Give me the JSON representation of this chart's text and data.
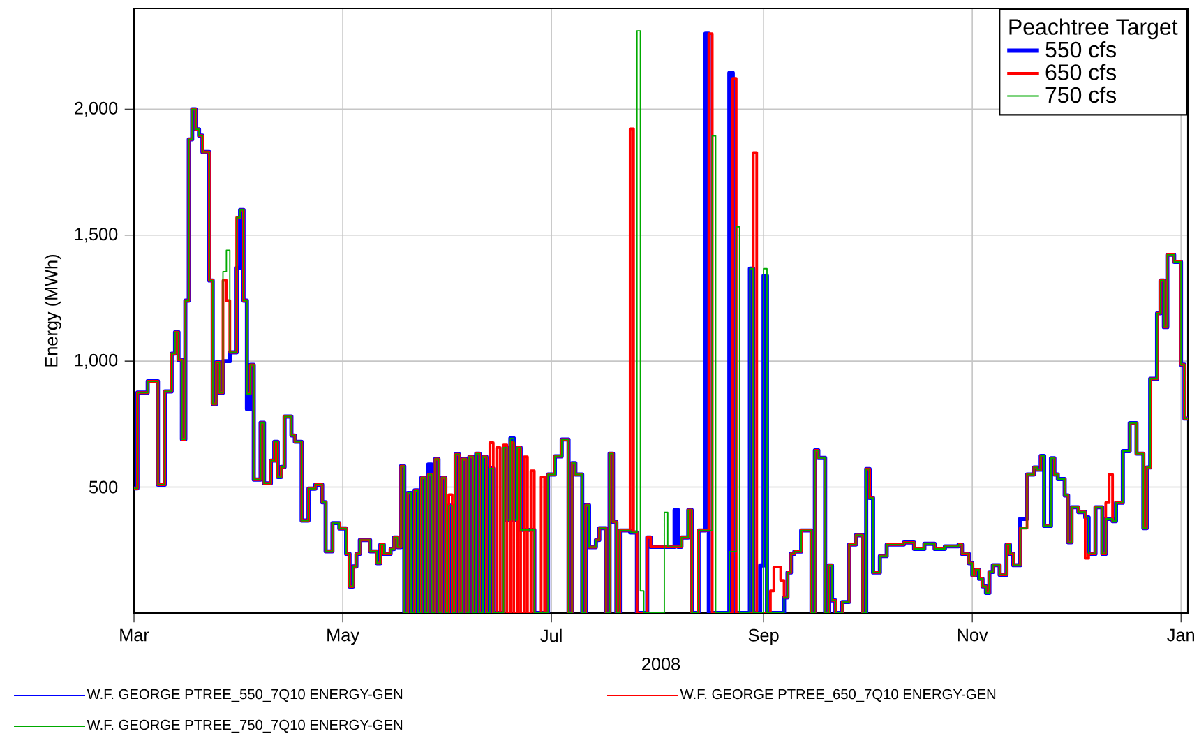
{
  "chart_data": {
    "type": "step",
    "ylabel": "Energy (MWh)",
    "xlabel": "2008",
    "legend_title": "Peachtree Target",
    "legend": "top right",
    "grid": true,
    "xlim": [
      "2008-03-01",
      "2009-01-03"
    ],
    "ylim": [
      0,
      2400
    ],
    "xticks": [
      {
        "value": "2008-03-01",
        "label": "Mar"
      },
      {
        "value": "2008-05-01",
        "label": "May"
      },
      {
        "value": "2008-07-01",
        "label": "Jul"
      },
      {
        "value": "2008-09-01",
        "label": "Sep"
      },
      {
        "value": "2008-11-01",
        "label": "Nov"
      },
      {
        "value": "2009-01-01",
        "label": "Jan"
      }
    ],
    "yticks": [
      500,
      {
        "value": 1000,
        "label": "1,000"
      },
      {
        "value": 1500,
        "label": "1,500"
      },
      {
        "value": 2000,
        "label": "2,000"
      }
    ],
    "x": [
      "2008-03-01",
      "2008-03-02",
      "2008-03-05",
      "2008-03-08",
      "2008-03-10",
      "2008-03-12",
      "2008-03-13",
      "2008-03-14",
      "2008-03-15",
      "2008-03-16",
      "2008-03-17",
      "2008-03-18",
      "2008-03-19",
      "2008-03-20",
      "2008-03-21",
      "2008-03-23",
      "2008-03-24",
      "2008-03-25",
      "2008-03-26",
      "2008-03-27",
      "2008-03-28",
      "2008-03-29",
      "2008-03-31",
      "2008-04-01",
      "2008-04-02",
      "2008-04-03",
      "2008-04-04",
      "2008-04-05",
      "2008-04-07",
      "2008-04-08",
      "2008-04-10",
      "2008-04-11",
      "2008-04-12",
      "2008-04-13",
      "2008-04-14",
      "2008-04-16",
      "2008-04-17",
      "2008-04-19",
      "2008-04-21",
      "2008-04-23",
      "2008-04-25",
      "2008-04-26",
      "2008-04-28",
      "2008-04-30",
      "2008-05-02",
      "2008-05-03",
      "2008-05-04",
      "2008-05-05",
      "2008-05-06",
      "2008-05-09",
      "2008-05-11",
      "2008-05-12",
      "2008-05-13",
      "2008-05-15",
      "2008-05-16",
      "2008-05-17",
      "2008-05-18",
      "2008-05-19",
      "2008-05-20",
      "2008-05-21",
      "2008-05-22",
      "2008-05-23",
      "2008-05-24",
      "2008-05-25",
      "2008-05-26",
      "2008-05-27",
      "2008-05-28",
      "2008-05-29",
      "2008-05-30",
      "2008-05-31",
      "2008-06-01",
      "2008-06-02",
      "2008-06-03",
      "2008-06-04",
      "2008-06-05",
      "2008-06-06",
      "2008-06-07",
      "2008-06-08",
      "2008-06-09",
      "2008-06-10",
      "2008-06-11",
      "2008-06-12",
      "2008-06-13",
      "2008-06-14",
      "2008-06-15",
      "2008-06-16",
      "2008-06-17",
      "2008-06-18",
      "2008-06-19",
      "2008-06-20",
      "2008-06-21",
      "2008-06-22",
      "2008-06-23",
      "2008-06-24",
      "2008-06-25",
      "2008-06-26",
      "2008-06-28",
      "2008-06-29",
      "2008-06-30",
      "2008-07-02",
      "2008-07-04",
      "2008-07-06",
      "2008-07-07",
      "2008-07-08",
      "2008-07-10",
      "2008-07-11",
      "2008-07-12",
      "2008-07-14",
      "2008-07-15",
      "2008-07-17",
      "2008-07-18",
      "2008-07-19",
      "2008-07-20",
      "2008-07-21",
      "2008-07-24",
      "2008-07-25",
      "2008-07-26",
      "2008-07-27",
      "2008-07-28",
      "2008-07-29",
      "2008-07-30",
      "2008-08-03",
      "2008-08-04",
      "2008-08-06",
      "2008-08-07",
      "2008-08-08",
      "2008-08-10",
      "2008-08-11",
      "2008-08-13",
      "2008-08-15",
      "2008-08-16",
      "2008-08-17",
      "2008-08-18",
      "2008-08-22",
      "2008-08-23",
      "2008-08-24",
      "2008-08-25",
      "2008-08-28",
      "2008-08-29",
      "2008-08-30",
      "2008-08-31",
      "2008-09-01",
      "2008-09-02",
      "2008-09-03",
      "2008-09-04",
      "2008-09-06",
      "2008-09-07",
      "2008-09-08",
      "2008-09-09",
      "2008-09-10",
      "2008-09-12",
      "2008-09-15",
      "2008-09-16",
      "2008-09-17",
      "2008-09-19",
      "2008-09-20",
      "2008-09-21",
      "2008-09-22",
      "2008-09-24",
      "2008-09-26",
      "2008-09-28",
      "2008-09-30",
      "2008-10-01",
      "2008-10-02",
      "2008-10-03",
      "2008-10-05",
      "2008-10-07",
      "2008-10-12",
      "2008-10-15",
      "2008-10-18",
      "2008-10-21",
      "2008-10-24",
      "2008-10-28",
      "2008-10-29",
      "2008-10-31",
      "2008-11-01",
      "2008-11-02",
      "2008-11-03",
      "2008-11-04",
      "2008-11-05",
      "2008-11-06",
      "2008-11-07",
      "2008-11-09",
      "2008-11-11",
      "2008-11-12",
      "2008-11-13",
      "2008-11-15",
      "2008-11-17",
      "2008-11-19",
      "2008-11-20",
      "2008-11-21",
      "2008-11-22",
      "2008-11-24",
      "2008-11-25",
      "2008-11-26",
      "2008-11-28",
      "2008-11-29",
      "2008-11-30",
      "2008-12-02",
      "2008-12-04",
      "2008-12-05",
      "2008-12-07",
      "2008-12-09",
      "2008-12-10",
      "2008-12-11",
      "2008-12-12",
      "2008-12-13",
      "2008-12-15",
      "2008-12-17",
      "2008-12-19",
      "2008-12-21",
      "2008-12-22",
      "2008-12-23",
      "2008-12-25",
      "2008-12-26",
      "2008-12-27",
      "2008-12-28",
      "2008-12-30",
      "2009-01-01",
      "2009-01-02",
      "2009-01-03"
    ],
    "series": [
      {
        "name": "550 cfs",
        "color": "#0000ff",
        "values": [
          495,
          875,
          920,
          510,
          880,
          1030,
          1115,
          1005,
          690,
          1240,
          1880,
          2000,
          1920,
          1895,
          1830,
          1320,
          830,
          995,
          875,
          1000,
          1000,
          1035,
          1370,
          1600,
          1240,
          810,
          985,
          530,
          755,
          515,
          605,
          680,
          540,
          580,
          780,
          705,
          680,
          367,
          494,
          510,
          440,
          245,
          357,
          336,
          235,
          105,
          185,
          235,
          290,
          245,
          198,
          272,
          235,
          254,
          300,
          262,
          583,
          0,
          477,
          0,
          487,
          0,
          537,
          0,
          590,
          0,
          611,
          0,
          537,
          0,
          426,
          0,
          630,
          0,
          611,
          0,
          620,
          0,
          633,
          0,
          620,
          0,
          574,
          0,
          0,
          0,
          657,
          370,
          694,
          370,
          657,
          330,
          330,
          330,
          330,
          0,
          0,
          0,
          550,
          622,
          689,
          0,
          595,
          550,
          0,
          428,
          262,
          290,
          337,
          0,
          633,
          362,
          0,
          328,
          320,
          320,
          0,
          0,
          0,
          300,
          263,
          263,
          263,
          409,
          263,
          300,
          409,
          0,
          328,
          2300,
          0,
          0,
          0,
          2144,
          0,
          0,
          0,
          1367,
          0,
          0,
          189,
          1339,
          0,
          0,
          0,
          0,
          62,
          161,
          235,
          244,
          328,
          0,
          646,
          616,
          0,
          189,
          50,
          0,
          44,
          272,
          309,
          0,
          572,
          457,
          161,
          226,
          272,
          280,
          255,
          275,
          255,
          265,
          272,
          235,
          198,
          150,
          172,
          136,
          106,
          80,
          163,
          190,
          152,
          272,
          235,
          190,
          374,
          550,
          578,
          569,
          624,
          346,
          615,
          550,
          532,
          467,
          281,
          420,
          401,
          380,
          235,
          420,
          235,
          374,
          374,
          365,
          438,
          643,
          754,
          633,
          337,
          578,
          930,
          1190,
          1320,
          1135,
          1422,
          1394,
          986,
          772,
          772
        ]
      },
      {
        "name": "650 cfs",
        "color": "#ff0000",
        "values": [
          495,
          875,
          920,
          510,
          880,
          1030,
          1115,
          1005,
          690,
          1240,
          1880,
          2000,
          1920,
          1895,
          1830,
          1320,
          830,
          995,
          875,
          1320,
          1240,
          1035,
          1570,
          1600,
          1240,
          870,
          985,
          530,
          755,
          515,
          605,
          680,
          540,
          580,
          780,
          705,
          680,
          367,
          494,
          510,
          440,
          245,
          357,
          336,
          235,
          105,
          185,
          235,
          290,
          245,
          198,
          272,
          235,
          254,
          300,
          262,
          583,
          0,
          477,
          0,
          487,
          0,
          537,
          0,
          550,
          0,
          611,
          0,
          537,
          0,
          470,
          0,
          630,
          0,
          611,
          0,
          620,
          0,
          633,
          0,
          620,
          0,
          676,
          0,
          657,
          0,
          667,
          0,
          676,
          0,
          657,
          0,
          620,
          0,
          565,
          0,
          540,
          0,
          550,
          622,
          689,
          0,
          595,
          550,
          0,
          428,
          262,
          290,
          337,
          0,
          633,
          362,
          0,
          328,
          1922,
          320,
          0,
          0,
          0,
          300,
          263,
          263,
          263,
          263,
          263,
          300,
          409,
          0,
          328,
          328,
          2300,
          0,
          0,
          0,
          2122,
          0,
          0,
          0,
          1828,
          0,
          0,
          0,
          0,
          88,
          183,
          130,
          62,
          161,
          235,
          244,
          328,
          0,
          646,
          616,
          0,
          189,
          50,
          0,
          44,
          272,
          309,
          0,
          572,
          457,
          161,
          226,
          272,
          280,
          255,
          275,
          255,
          265,
          272,
          235,
          198,
          150,
          172,
          136,
          106,
          80,
          163,
          190,
          152,
          272,
          235,
          190,
          337,
          550,
          578,
          569,
          624,
          346,
          615,
          550,
          532,
          467,
          281,
          420,
          401,
          217,
          235,
          420,
          235,
          438,
          550,
          365,
          438,
          643,
          754,
          633,
          337,
          578,
          930,
          1190,
          1320,
          1135,
          1422,
          1394,
          986,
          772,
          772
        ]
      },
      {
        "name": "750 cfs",
        "color": "#00aa00",
        "values": [
          495,
          875,
          920,
          510,
          880,
          1030,
          1115,
          1005,
          690,
          1240,
          1880,
          2000,
          1920,
          1895,
          1830,
          1320,
          830,
          995,
          875,
          1355,
          1440,
          1035,
          1570,
          1600,
          1240,
          870,
          985,
          530,
          755,
          515,
          605,
          680,
          540,
          580,
          780,
          705,
          680,
          367,
          494,
          510,
          440,
          245,
          357,
          336,
          235,
          105,
          185,
          235,
          290,
          245,
          198,
          272,
          235,
          254,
          300,
          262,
          583,
          0,
          477,
          0,
          487,
          0,
          537,
          0,
          550,
          0,
          611,
          0,
          537,
          0,
          426,
          0,
          630,
          0,
          611,
          0,
          620,
          0,
          633,
          0,
          620,
          0,
          574,
          0,
          0,
          0,
          657,
          370,
          694,
          370,
          657,
          330,
          330,
          330,
          330,
          0,
          0,
          0,
          550,
          622,
          689,
          0,
          595,
          550,
          0,
          428,
          262,
          290,
          337,
          0,
          633,
          362,
          0,
          328,
          320,
          320,
          2311,
          88,
          0,
          0,
          0,
          400,
          263,
          263,
          263,
          300,
          409,
          0,
          328,
          328,
          328,
          1894,
          0,
          244,
          244,
          1533,
          0,
          1367,
          0,
          0,
          0,
          1367,
          0,
          0,
          0,
          0,
          62,
          161,
          235,
          244,
          328,
          0,
          646,
          616,
          0,
          189,
          50,
          0,
          44,
          272,
          309,
          0,
          572,
          457,
          161,
          226,
          272,
          280,
          255,
          275,
          255,
          265,
          272,
          235,
          198,
          150,
          172,
          136,
          106,
          80,
          163,
          190,
          152,
          272,
          235,
          190,
          337,
          550,
          578,
          569,
          624,
          346,
          615,
          550,
          532,
          467,
          281,
          420,
          401,
          380,
          235,
          420,
          235,
          374,
          374,
          365,
          438,
          643,
          754,
          633,
          337,
          578,
          930,
          1190,
          1320,
          1135,
          1422,
          1394,
          986,
          772,
          772
        ]
      }
    ],
    "annotations": [
      "W.F. GEORGE PTREE_550_7Q10 ENERGY-GEN",
      "W.F. GEORGE PTREE_650_7Q10 ENERGY-GEN",
      "W.F. GEORGE PTREE_750_7Q10 ENERGY-GEN"
    ]
  }
}
